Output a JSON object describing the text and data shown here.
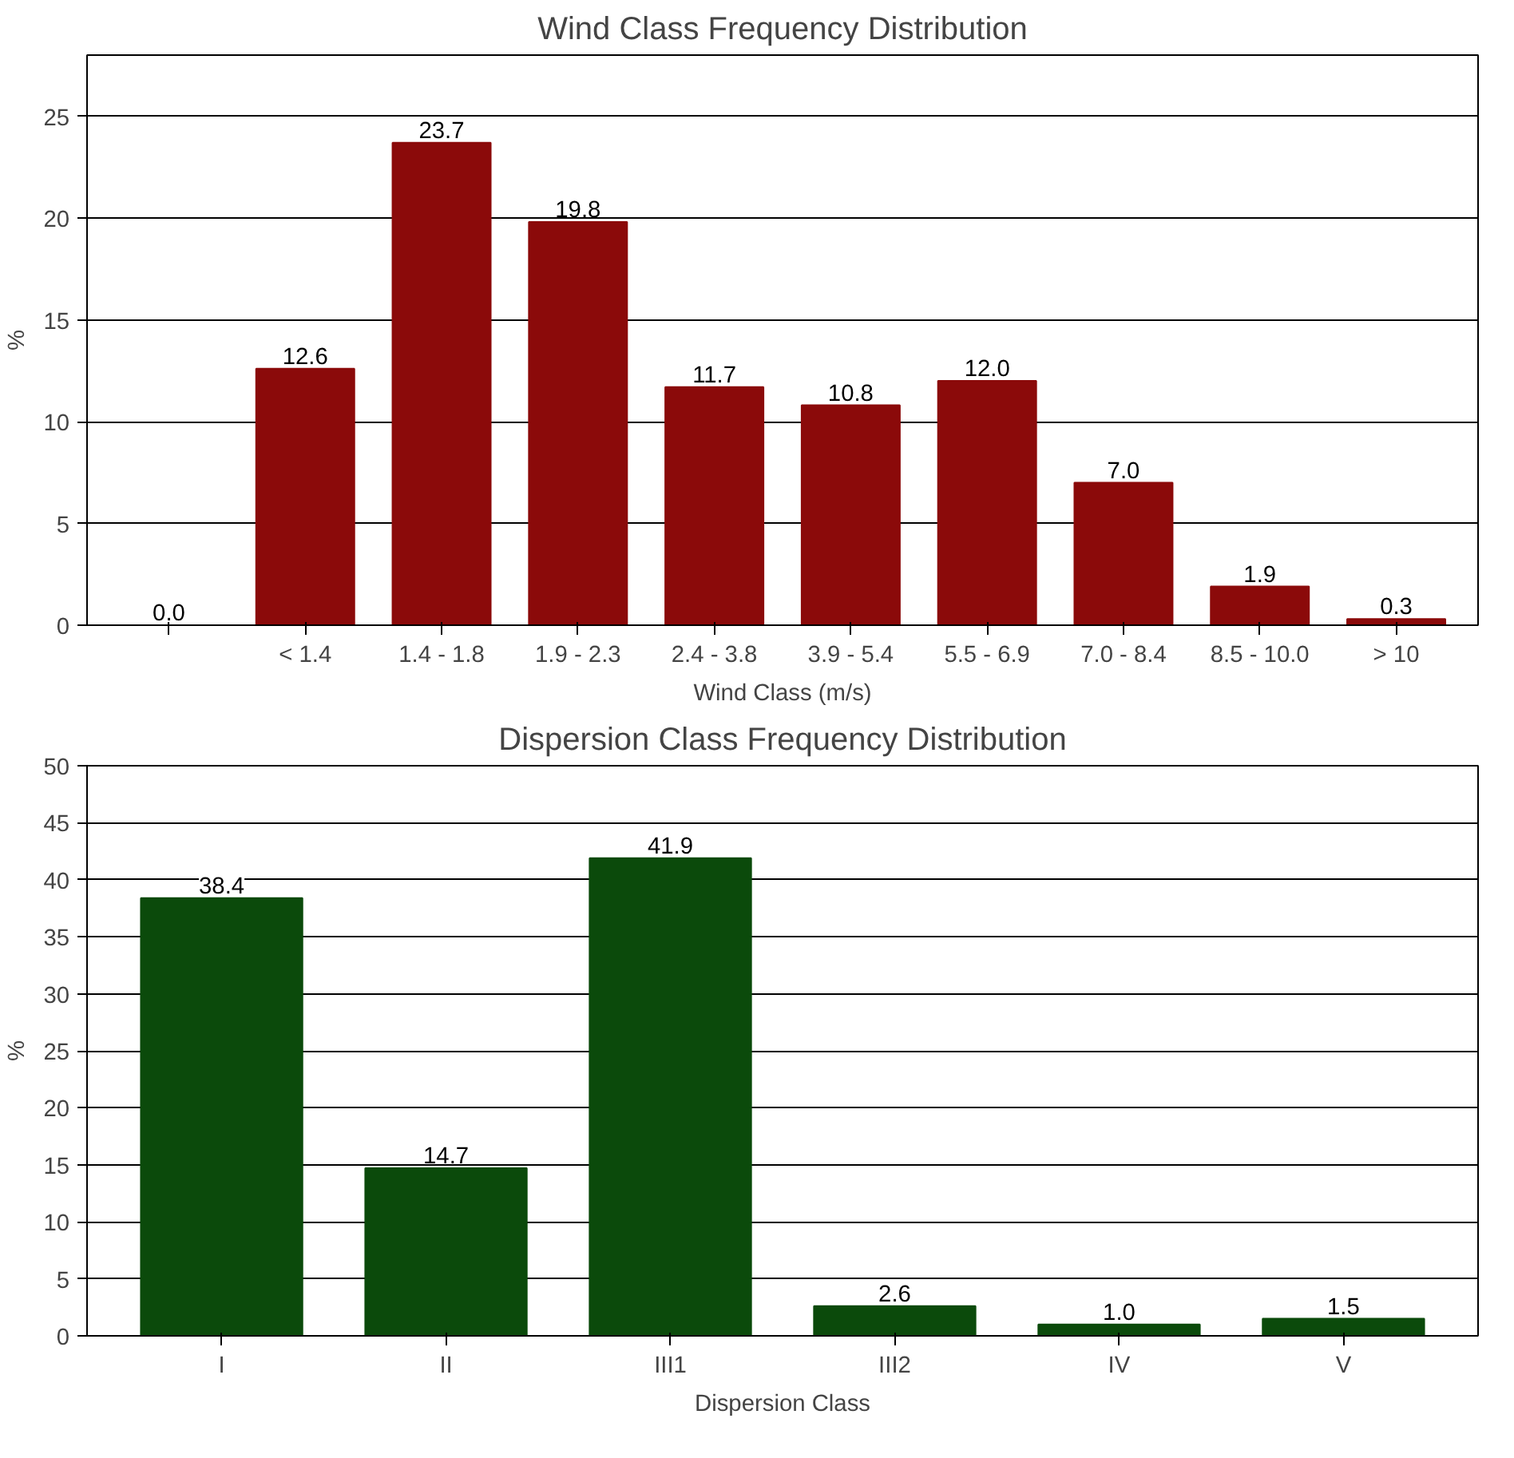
{
  "chart_data": [
    {
      "type": "bar",
      "title": "Wind Class Frequency Distribution",
      "xlabel": "Wind Class (m/s)",
      "ylabel": "%",
      "categories": [
        null,
        "< 1.4",
        "1.4 - 1.8",
        "1.9 - 2.3",
        "2.4 - 3.8",
        "3.9 - 5.4",
        "5.5 - 6.9",
        "7.0 - 8.4",
        "8.5 - 10.0",
        "> 10"
      ],
      "values": [
        0.0,
        12.6,
        23.7,
        19.8,
        11.7,
        10.8,
        12.0,
        7.0,
        1.9,
        0.3
      ],
      "color": "#8b0a0a",
      "value_labels": [
        "0.0",
        "12.6",
        "23.7",
        "19.8",
        "11.7",
        "10.8",
        "12.0",
        "7.0",
        "1.9",
        "0.3"
      ],
      "ylim": [
        0,
        28
      ],
      "yticks": [
        0,
        5,
        10,
        15,
        20,
        25
      ],
      "grid": "y"
    },
    {
      "type": "bar",
      "title": "Dispersion Class Frequency Distribution",
      "xlabel": "Dispersion Class",
      "ylabel": "%",
      "categories": [
        "I",
        "II",
        "III1",
        "III2",
        "IV",
        "V"
      ],
      "values": [
        38.4,
        14.7,
        41.9,
        2.6,
        1.0,
        1.5
      ],
      "color": "#0b4a0b",
      "value_labels": [
        "38.4",
        "14.7",
        "41.9",
        "2.6",
        "1.0",
        "1.5"
      ],
      "ylim": [
        0,
        50
      ],
      "yticks": [
        0,
        5,
        10,
        15,
        20,
        25,
        30,
        35,
        40,
        45,
        50
      ],
      "grid": "y"
    }
  ]
}
